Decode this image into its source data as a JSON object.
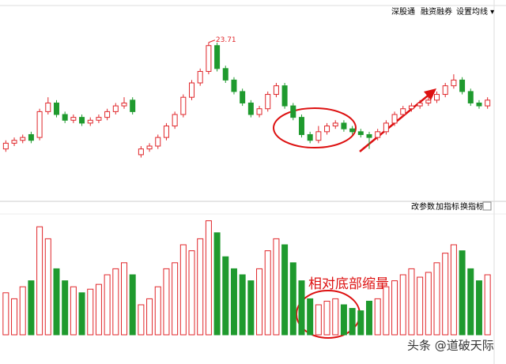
{
  "ui": {
    "tabs": [
      "深股通",
      "融资融券",
      "设置均线 ▾"
    ],
    "indicator_buttons": [
      "改参数",
      "加指标",
      "换指标"
    ],
    "annotation": "相对底部缩量",
    "watermark": "头条 @道破天际"
  },
  "chart_data": [
    {
      "type": "candlestick",
      "up_color": "#e0262a",
      "down_color": "#1f9a2e",
      "ylim": [
        19,
        24.5
      ],
      "open": [
        20.0,
        20.2,
        20.3,
        20.5,
        20.4,
        21.3,
        21.6,
        21.2,
        21.0,
        21.1,
        20.9,
        21.0,
        21.1,
        21.3,
        21.5,
        21.7,
        19.8,
        20.0,
        20.1,
        20.4,
        20.8,
        21.2,
        21.8,
        22.3,
        22.7,
        23.6,
        22.8,
        22.4,
        22.0,
        21.6,
        21.2,
        21.4,
        21.9,
        22.2,
        21.5,
        21.1,
        20.5,
        20.3,
        20.6,
        20.8,
        20.9,
        20.7,
        20.6,
        20.5,
        20.4,
        20.6,
        20.9,
        21.2,
        21.4,
        21.5,
        21.6,
        21.7,
        21.9,
        22.2,
        22.4,
        22.0,
        21.6,
        21.5
      ],
      "close": [
        20.2,
        20.3,
        20.4,
        20.3,
        21.3,
        21.6,
        21.2,
        21.0,
        21.1,
        20.9,
        21.0,
        21.1,
        21.3,
        21.5,
        21.6,
        21.3,
        20.0,
        20.1,
        20.4,
        20.8,
        21.2,
        21.8,
        22.3,
        22.7,
        23.6,
        22.8,
        22.4,
        22.0,
        21.6,
        21.2,
        21.4,
        21.9,
        22.2,
        21.5,
        21.1,
        20.5,
        20.3,
        20.6,
        20.8,
        20.9,
        20.7,
        20.6,
        20.5,
        20.4,
        20.6,
        20.9,
        21.2,
        21.4,
        21.5,
        21.6,
        21.7,
        21.9,
        22.2,
        22.4,
        22.0,
        21.6,
        21.5,
        21.7
      ],
      "high": [
        20.3,
        20.4,
        20.5,
        20.6,
        21.4,
        21.8,
        21.7,
        21.3,
        21.2,
        21.2,
        21.1,
        21.2,
        21.4,
        21.6,
        21.8,
        21.8,
        20.1,
        20.2,
        20.5,
        20.9,
        21.3,
        21.9,
        22.4,
        22.8,
        23.71,
        23.7,
        22.9,
        22.5,
        22.1,
        21.7,
        21.5,
        22.0,
        22.3,
        22.3,
        21.6,
        21.2,
        20.6,
        20.8,
        20.9,
        21.0,
        21.0,
        20.8,
        20.7,
        20.6,
        20.7,
        21.0,
        21.3,
        21.5,
        21.6,
        21.7,
        21.8,
        22.0,
        22.3,
        22.6,
        22.5,
        22.1,
        21.7,
        21.8
      ],
      "low": [
        19.9,
        20.1,
        20.2,
        20.2,
        20.3,
        21.2,
        21.1,
        20.9,
        20.9,
        20.8,
        20.8,
        20.9,
        21.0,
        21.2,
        21.4,
        21.2,
        19.7,
        19.9,
        20.0,
        20.3,
        20.7,
        21.1,
        21.7,
        22.2,
        22.6,
        22.7,
        22.3,
        21.9,
        21.5,
        21.1,
        21.1,
        21.3,
        21.8,
        21.4,
        21.0,
        20.4,
        20.2,
        20.2,
        20.5,
        20.7,
        20.6,
        20.5,
        20.4,
        20.0,
        20.3,
        20.5,
        20.8,
        21.1,
        21.3,
        21.4,
        21.5,
        21.6,
        21.8,
        22.1,
        21.9,
        21.5,
        21.4,
        21.4
      ]
    },
    {
      "type": "bar",
      "ylim": [
        0,
        100
      ],
      "values": [
        35,
        30,
        40,
        45,
        90,
        80,
        55,
        45,
        40,
        35,
        38,
        42,
        50,
        55,
        60,
        50,
        25,
        30,
        40,
        55,
        60,
        75,
        70,
        80,
        95,
        85,
        65,
        55,
        50,
        45,
        55,
        70,
        80,
        75,
        60,
        45,
        30,
        25,
        28,
        30,
        25,
        22,
        20,
        28,
        30,
        40,
        45,
        50,
        55,
        48,
        52,
        60,
        68,
        75,
        70,
        55,
        45,
        50
      ]
    }
  ]
}
